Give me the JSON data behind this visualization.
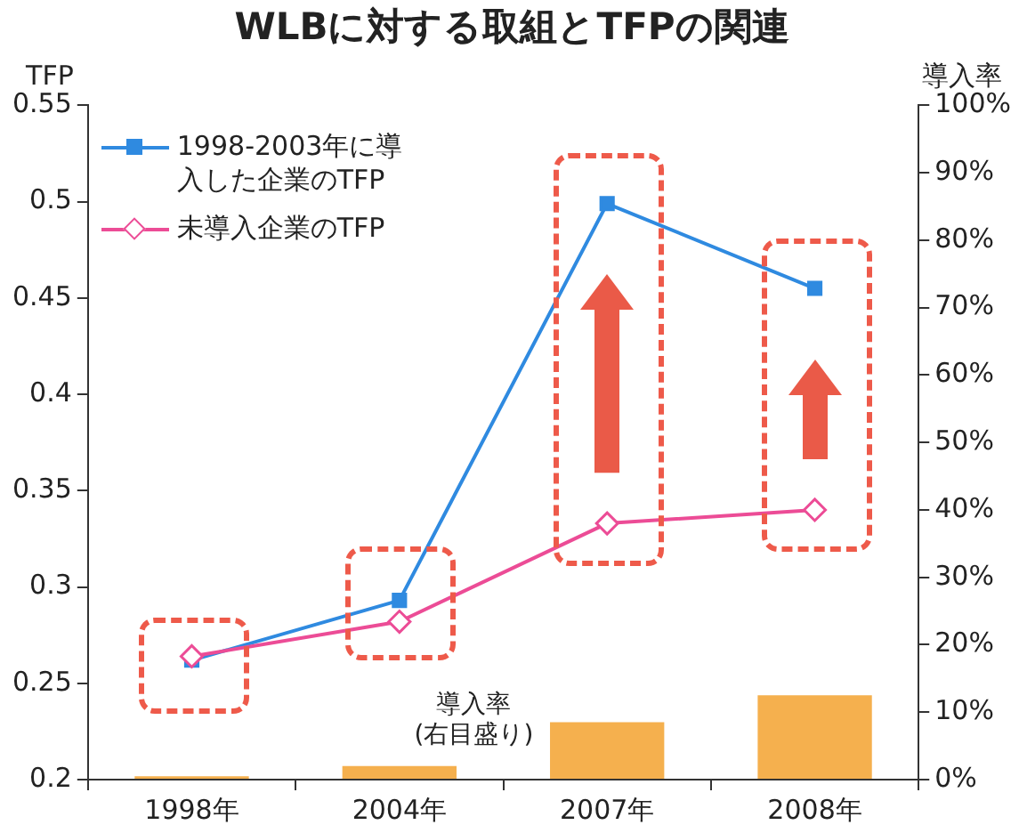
{
  "chart_data": {
    "type": "line",
    "title": "WLBに対する取組とTFPの関連",
    "ylabel": "TFP",
    "y2label": "導入率",
    "categories": [
      "1998年",
      "2004年",
      "2007年",
      "2008年"
    ],
    "series": [
      {
        "type": "bar",
        "axis": "y2",
        "color": "#f5b04e",
        "values": [
          0.5,
          2,
          8.5,
          12.5
        ]
      },
      {
        "name": "1998-2003年に導入した企業のTFP",
        "color": "#2f8ae0",
        "marker": "square",
        "values": [
          0.262,
          0.293,
          0.499,
          0.455
        ]
      },
      {
        "name": "未導入企業のTFP",
        "color": "#ec4c96",
        "marker": "diamond",
        "values": [
          0.264,
          0.282,
          0.333,
          0.34
        ]
      }
    ],
    "ylim": [
      0.2,
      0.55
    ],
    "yticks": [
      0.2,
      0.25,
      0.3,
      0.35,
      0.4,
      0.45,
      0.5,
      0.55
    ],
    "y2lim": [
      0,
      100
    ],
    "y2ticks": [
      {
        "value": 0,
        "label": "0%"
      },
      {
        "value": 10,
        "label": "10%"
      },
      {
        "value": 20,
        "label": "20%"
      },
      {
        "value": 30,
        "label": "30%"
      },
      {
        "value": 40,
        "label": "40%"
      },
      {
        "value": 50,
        "label": "50%"
      },
      {
        "value": 60,
        "label": "60%"
      },
      {
        "value": 70,
        "label": "70%"
      },
      {
        "value": 80,
        "label": "80%"
      },
      {
        "value": 90,
        "label": "90%"
      },
      {
        "value": 100,
        "label": "100%"
      }
    ],
    "annotations": [
      "導入率\n(右目盛り)"
    ],
    "grid": false,
    "legend": "top left"
  }
}
